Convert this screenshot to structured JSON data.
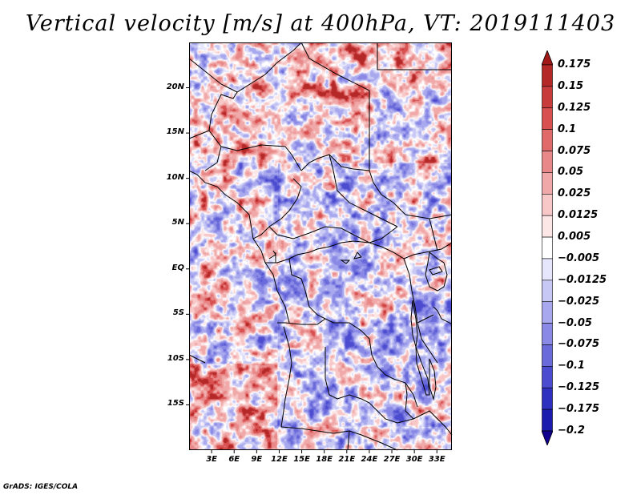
{
  "title": "Vertical velocity [m/s] at 400hPa, VT: 2019111403",
  "credit": "GrADS: IGES/COLA",
  "map": {
    "lat_range": [
      -20,
      25
    ],
    "lon_range": [
      0,
      35
    ],
    "lat_labels": [
      {
        "lat": 20,
        "text": "20N"
      },
      {
        "lat": 15,
        "text": "15N"
      },
      {
        "lat": 10,
        "text": "10N"
      },
      {
        "lat": 5,
        "text": "5N"
      },
      {
        "lat": 0,
        "text": "EQ"
      },
      {
        "lat": -5,
        "text": "5S"
      },
      {
        "lat": -10,
        "text": "10S"
      },
      {
        "lat": -15,
        "text": "15S"
      }
    ],
    "lon_labels": [
      {
        "lon": 3,
        "text": "3E"
      },
      {
        "lon": 6,
        "text": "6E"
      },
      {
        "lon": 9,
        "text": "9E"
      },
      {
        "lon": 12,
        "text": "12E"
      },
      {
        "lon": 15,
        "text": "15E"
      },
      {
        "lon": 18,
        "text": "18E"
      },
      {
        "lon": 21,
        "text": "21E"
      },
      {
        "lon": 24,
        "text": "24E"
      },
      {
        "lon": 27,
        "text": "27E"
      },
      {
        "lon": 30,
        "text": "30E"
      },
      {
        "lon": 33,
        "text": "33E"
      }
    ]
  },
  "colorbar": {
    "labels": [
      "0.175",
      "0.15",
      "0.125",
      "0.1",
      "0.075",
      "0.05",
      "0.025",
      "0.0125",
      "0.005",
      "-0.005",
      "-0.0125",
      "-0.025",
      "-0.05",
      "-0.075",
      "-0.1",
      "-0.125",
      "-0.175",
      "-0.2"
    ],
    "colors": [
      "#a01818",
      "#b42828",
      "#c83c3c",
      "#d85050",
      "#e06a6a",
      "#e88888",
      "#f0a8a8",
      "#f8c8c8",
      "#fce6e6",
      "#ffffff",
      "#e6e6fc",
      "#c8c8f4",
      "#a8a8ee",
      "#8a8ae6",
      "#6a6ada",
      "#4c4cd0",
      "#3030c0",
      "#1c1cae",
      "#100090"
    ]
  }
}
